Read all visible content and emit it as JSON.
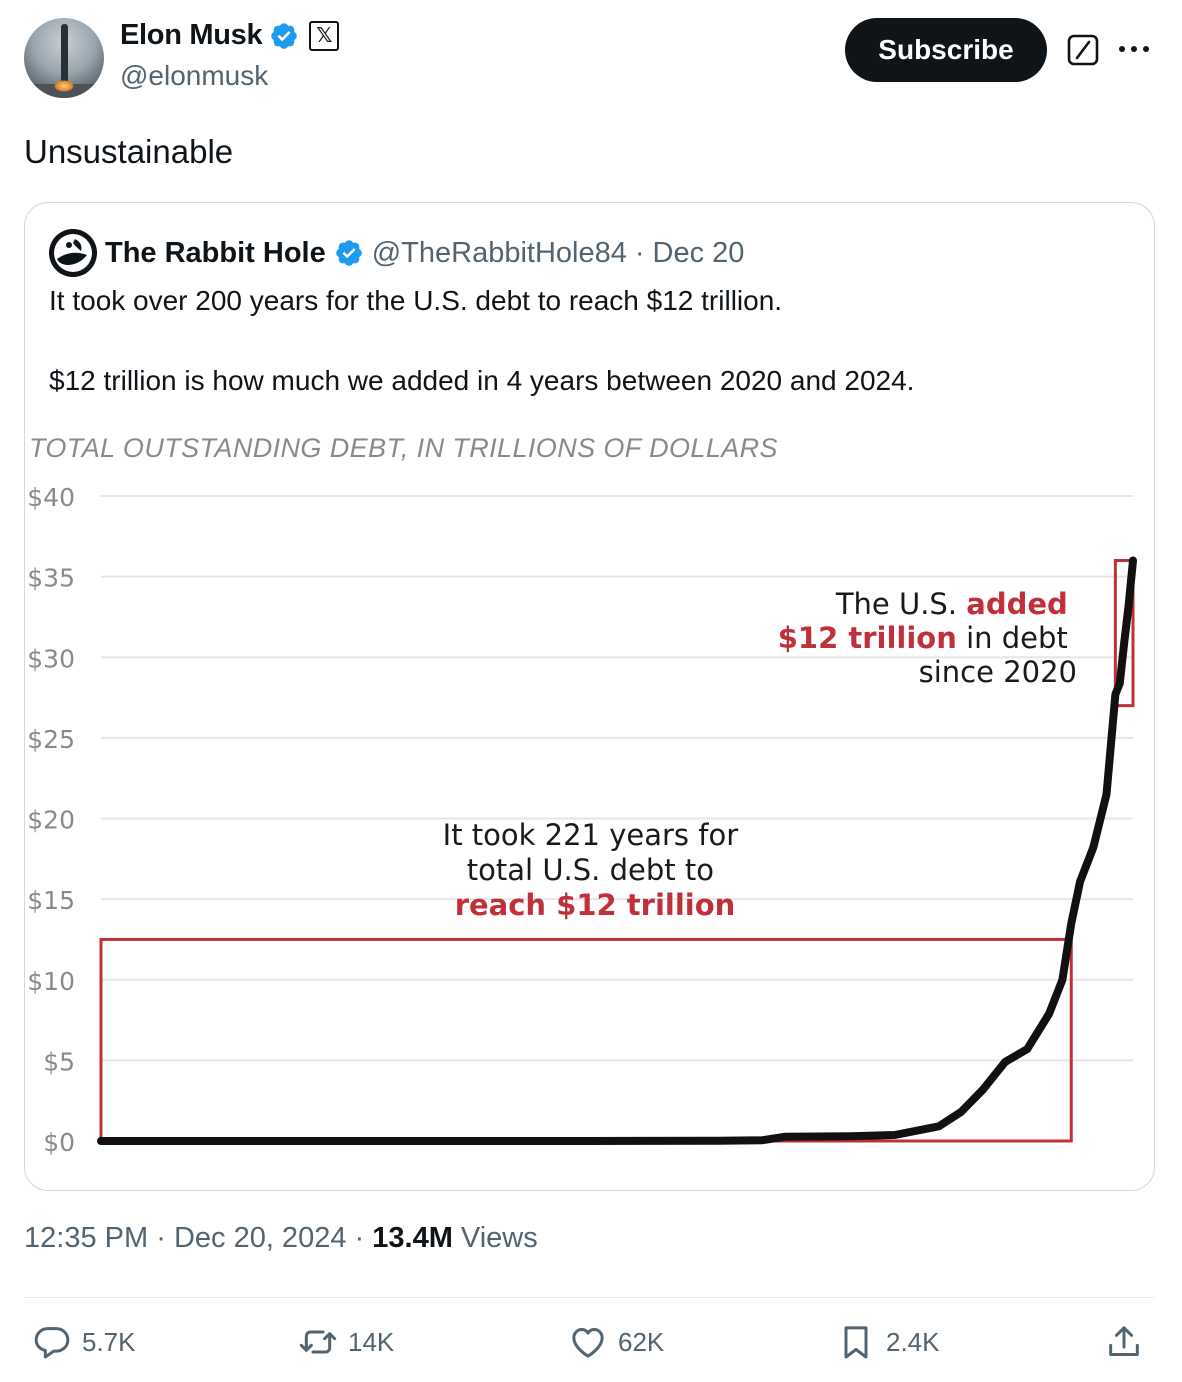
{
  "author": {
    "name": "Elon Musk",
    "handle": "@elonmusk",
    "x_badge": "𝕏"
  },
  "header": {
    "subscribe_label": "Subscribe",
    "grok_icon": "grok-icon",
    "more_icon": "more-icon"
  },
  "tweet": {
    "text": "Unsustainable"
  },
  "quoted": {
    "name": "The Rabbit Hole",
    "handle": "@TheRabbitHole84",
    "separator": "·",
    "date": "Dec 20",
    "text_line1": "It took over 200 years for the U.S. debt to reach $12 trillion.",
    "text_line2": "$12 trillion is how much we added in 4 years between 2020 and 2024."
  },
  "chart_data": {
    "type": "line",
    "title": "TOTAL OUTSTANDING DEBT, IN TRILLIONS OF DOLLARS",
    "xlabel": "",
    "ylabel": "",
    "xlim": [
      1790,
      2024
    ],
    "ylim": [
      0,
      40
    ],
    "x_ticks": [
      "1800",
      "1820",
      "1840",
      "1860",
      "1880",
      "1900",
      "1920",
      "1940",
      "1960",
      "1980",
      "2000",
      "2020"
    ],
    "y_ticks": [
      "$0",
      "$5",
      "$10",
      "$15",
      "$20",
      "$25",
      "$30",
      "$35",
      "$40"
    ],
    "grid": "horizontal",
    "line_color": "#111111",
    "highlight_color": "#c0303a",
    "series": [
      {
        "x": [
          1790,
          1850,
          1900,
          1930,
          1940,
          1945,
          1960,
          1970,
          1980,
          1985,
          1990,
          1995,
          2000,
          2005,
          2008,
          2010,
          2012,
          2015,
          2018,
          2020,
          2021,
          2022,
          2023,
          2024
        ],
        "y": [
          0.0,
          0.0,
          0.0,
          0.02,
          0.05,
          0.26,
          0.29,
          0.37,
          0.91,
          1.8,
          3.2,
          4.9,
          5.7,
          7.9,
          10.0,
          13.5,
          16.1,
          18.2,
          21.5,
          27.7,
          28.4,
          30.9,
          33.2,
          36.0
        ]
      }
    ],
    "annotations": {
      "old_prefix1": "It took 221 years for",
      "old_prefix2": "total U.S. debt to",
      "old_highlight": "reach $12 trillion",
      "new_prefix": "The U.S.",
      "new_highlight1": "added",
      "new_highlight2": "$12 trillion",
      "new_suffix1": "in debt",
      "new_suffix2": "since 2020"
    },
    "highlight_boxes": [
      {
        "x_start": 1790,
        "x_end": 2010,
        "y_start": 0,
        "y_end": 12.5
      },
      {
        "x_start": 2020,
        "x_end": 2024,
        "y_start": 27,
        "y_end": 36
      }
    ]
  },
  "meta": {
    "time": "12:35 PM",
    "sep1": "·",
    "date": "Dec 20, 2024",
    "sep2": "·",
    "views_count": "13.4M",
    "views_label": "Views"
  },
  "actions": {
    "replies": "5.7K",
    "reposts": "14K",
    "likes": "62K",
    "bookmarks": "2.4K"
  }
}
